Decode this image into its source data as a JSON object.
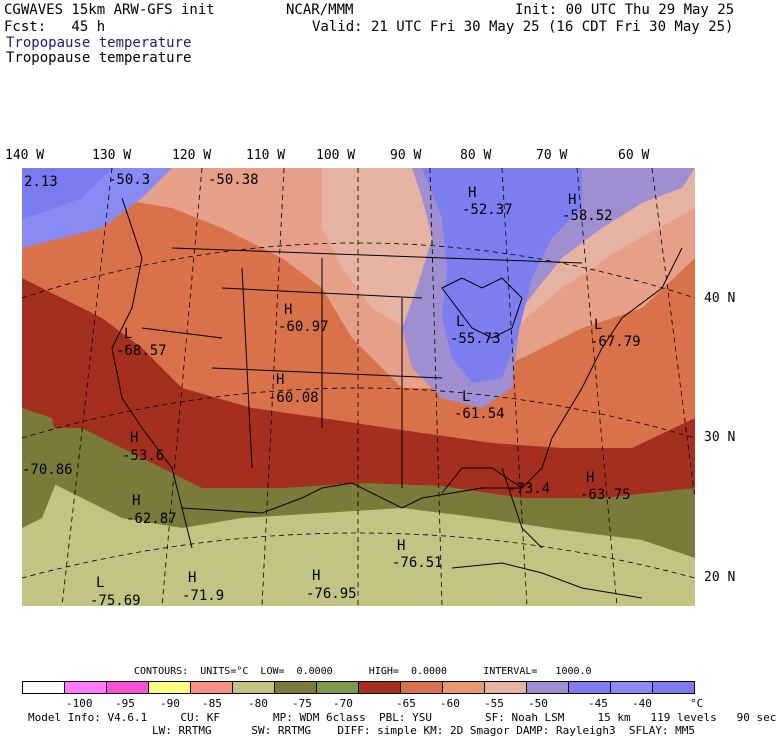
{
  "header": {
    "model": "CGWAVES 15km ARW-GFS init",
    "org": "NCAR/MMM",
    "init": "Init: 00 UTC Thu 29 May 25",
    "fcst": "Fcst:   45 h",
    "valid": "Valid: 21 UTC Fri 30 May 25 (16 CDT Fri 30 May 25)",
    "field_title": "Tropopause temperature",
    "field_sub": "Tropopause temperature"
  },
  "lon_labels": [
    "140 W",
    "130 W",
    "120 W",
    "110 W",
    "100 W",
    "90 W",
    "80 W",
    "70 W",
    "60 W"
  ],
  "lat_labels": [
    "40 N",
    "30 N",
    "20 N"
  ],
  "map_labels": [
    {
      "sym": "H",
      "val": "-52.37"
    },
    {
      "sym": "H",
      "val": "-58.52"
    },
    {
      "sym": "H",
      "val": "-60.97"
    },
    {
      "sym": "L",
      "val": "-68.57"
    },
    {
      "sym": "H",
      "val": "-60.08"
    },
    {
      "sym": "L",
      "val": "-55.73"
    },
    {
      "sym": "L",
      "val": "-61.54"
    },
    {
      "sym": "L",
      "val": "-67.79"
    },
    {
      "sym": "H",
      "val": "-53.6"
    },
    {
      "sym": "H",
      "val": "-62.87"
    },
    {
      "sym": "H",
      "val": "-63.75"
    },
    {
      "sym": "H",
      "val": "-76.51"
    },
    {
      "sym": "H",
      "val": "-76.95"
    },
    {
      "sym": "H",
      "val": "-71.9"
    },
    {
      "sym": "L",
      "val": "-75.69"
    },
    {
      "sym": "",
      "val": "-70.86"
    },
    {
      "sym": "",
      "val": "-50.3"
    },
    {
      "sym": "",
      "val": "-50.38"
    },
    {
      "sym": "",
      "val": "2.13"
    },
    {
      "sym": "",
      "val": "-73.4"
    }
  ],
  "contours": "CONTOURS:  UNITS=°C  LOW=  0.0000      HIGH=  0.0000      INTERVAL=   1000.0",
  "colorbar": {
    "colors": [
      "#ffffff",
      "#ff7aff",
      "#ff4fd6",
      "#ffff80",
      "#ff8f80",
      "#c3c483",
      "#7a7a3a",
      "#7c9a4a",
      "#a52f1e",
      "#d9714a",
      "#e79a72",
      "#e6b2a2",
      "#9f8fd0",
      "#7c7ef0",
      "#8a8af5",
      "#7b7bf0"
    ],
    "labels": [
      "-100",
      "-95",
      "-90",
      "-85",
      "-80",
      "-75",
      "-70",
      "-65",
      "-60",
      "-55",
      "-50",
      "-45",
      "-40",
      "°C"
    ]
  },
  "footer": {
    "line1": "Model Info: V4.6.1     CU: KF        MP: WDM 6class  PBL: YSU        SF: Noah LSM     15 km   119 levels   90 sec",
    "line2": "LW: RRTMG      SW: RRTMG    DIFF: simple KM: 2D Smagor DAMP: Rayleigh3  SFLAY: MM5"
  }
}
